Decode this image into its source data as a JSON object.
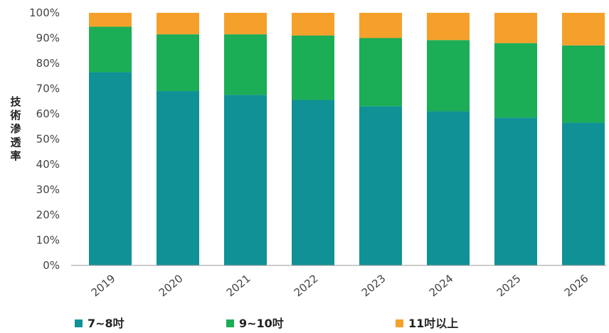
{
  "chart_data": {
    "type": "bar",
    "stacked": true,
    "categories": [
      "2019",
      "2020",
      "2021",
      "2022",
      "2023",
      "2024",
      "2025",
      "2026"
    ],
    "series": [
      {
        "name": "7~8吋",
        "color": "#0f9196",
        "values": [
          76.5,
          69,
          67.5,
          65.5,
          63,
          61,
          58.5,
          56.5
        ]
      },
      {
        "name": "9~10吋",
        "color": "#1cad57",
        "values": [
          18,
          22.5,
          24,
          25.5,
          27,
          28.2,
          29.5,
          30.6
        ]
      },
      {
        "name": "11吋以上",
        "color": "#f6a02c",
        "values": [
          5.5,
          8.5,
          8.5,
          9,
          10,
          10.8,
          12,
          12.9
        ]
      }
    ],
    "ylabel": "技術滲透率",
    "yticks": [
      "0%",
      "10%",
      "20%",
      "30%",
      "40%",
      "50%",
      "60%",
      "70%",
      "80%",
      "90%",
      "100%"
    ],
    "ylim": [
      0,
      100
    ],
    "grid": false,
    "legend_position": "bottom"
  }
}
